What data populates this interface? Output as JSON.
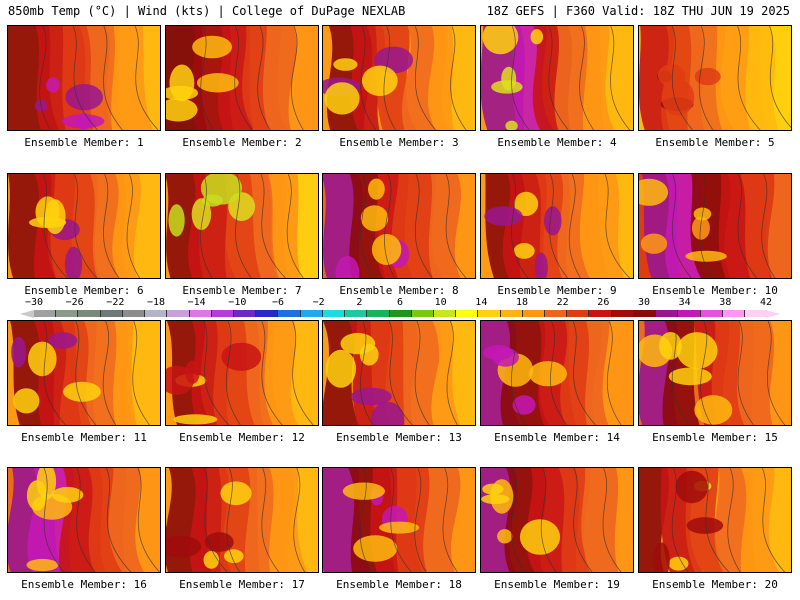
{
  "header": {
    "left": "850mb Temp (°C) | Wind (kts) | College of DuPage NEXLAB",
    "right": "18Z GEFS | F360 Valid: 18Z THU JUN 19 2025"
  },
  "members": [
    {
      "label": "Ensemble Member: 1",
      "palette": [
        "#8b0a0a",
        "#c81414",
        "#e03c14",
        "#f06a1e",
        "#ff9a14",
        "#ffbb0e",
        "#9a168e",
        "#c418b4"
      ]
    },
    {
      "label": "Ensemble Member: 2",
      "palette": [
        "#7a0808",
        "#a00c0c",
        "#c81414",
        "#e03c14",
        "#f06a1e",
        "#ff9a14",
        "#ffbb0e",
        "#ffd20e"
      ]
    },
    {
      "label": "Ensemble Member: 3",
      "palette": [
        "#8b0a0a",
        "#c81414",
        "#e03c14",
        "#f06a1e",
        "#ff9a14",
        "#ffbb0e",
        "#9a168e",
        "#ffd20e"
      ]
    },
    {
      "label": "Ensemble Member: 4",
      "palette": [
        "#9a168e",
        "#c418b4",
        "#c81414",
        "#f06a1e",
        "#ff9a14",
        "#ffbb0e",
        "#ffd20e",
        "#dede1e"
      ]
    },
    {
      "label": "Ensemble Member: 5",
      "palette": [
        "#c81414",
        "#e03c14",
        "#f06a1e",
        "#ff9a14",
        "#ffbb0e",
        "#ffd20e",
        "#8b0a0a",
        "#e03c14"
      ]
    },
    {
      "label": "Ensemble Member: 6",
      "palette": [
        "#8b0a0a",
        "#c81414",
        "#e03c14",
        "#f06a1e",
        "#ff9a14",
        "#ffbb0e",
        "#9a168e",
        "#ffd20e"
      ]
    },
    {
      "label": "Ensemble Member: 7",
      "palette": [
        "#8b0a0a",
        "#c81414",
        "#e03c14",
        "#f06a1e",
        "#ff9a14",
        "#ffd20e",
        "#dede1e",
        "#c8de1e"
      ]
    },
    {
      "label": "Ensemble Member: 8",
      "palette": [
        "#9a168e",
        "#8b0a0a",
        "#c81414",
        "#e03c14",
        "#f06a1e",
        "#ff9a14",
        "#c418b4",
        "#ffbb0e"
      ]
    },
    {
      "label": "Ensemble Member: 9",
      "palette": [
        "#8b0a0a",
        "#c81414",
        "#e03c14",
        "#f06a1e",
        "#ff9a14",
        "#ffbb0e",
        "#ffd20e",
        "#9a168e"
      ]
    },
    {
      "label": "Ensemble Member: 10",
      "palette": [
        "#9a168e",
        "#c418b4",
        "#8b0a0a",
        "#c81414",
        "#e03c14",
        "#f06a1e",
        "#ff9a14",
        "#ffbb0e"
      ]
    },
    {
      "label": "Ensemble Member: 11",
      "palette": [
        "#8b0a0a",
        "#c81414",
        "#e03c14",
        "#f06a1e",
        "#ff9a14",
        "#ffbb0e",
        "#9a168e",
        "#ffd20e"
      ]
    },
    {
      "label": "Ensemble Member: 12",
      "palette": [
        "#8b0a0a",
        "#c81414",
        "#e03c14",
        "#f06a1e",
        "#ff9a14",
        "#ffbb0e",
        "#ffd20e",
        "#c81414"
      ]
    },
    {
      "label": "Ensemble Member: 13",
      "palette": [
        "#8b0a0a",
        "#c81414",
        "#e03c14",
        "#f06a1e",
        "#ff9a14",
        "#ffbb0e",
        "#9a168e",
        "#ffd20e"
      ]
    },
    {
      "label": "Ensemble Member: 14",
      "palette": [
        "#9a168e",
        "#8b0a0a",
        "#c81414",
        "#e03c14",
        "#f06a1e",
        "#ff9a14",
        "#ffbb0e",
        "#c418b4"
      ]
    },
    {
      "label": "Ensemble Member: 15",
      "palette": [
        "#9a168e",
        "#8b0a0a",
        "#c81414",
        "#e03c14",
        "#f06a1e",
        "#ff9a14",
        "#ffbb0e",
        "#ffd20e"
      ]
    },
    {
      "label": "Ensemble Member: 16",
      "palette": [
        "#9a168e",
        "#c418b4",
        "#c81414",
        "#e03c14",
        "#f06a1e",
        "#ff9a14",
        "#ffbb0e",
        "#ffd20e"
      ]
    },
    {
      "label": "Ensemble Member: 17",
      "palette": [
        "#8b0a0a",
        "#c81414",
        "#e03c14",
        "#f06a1e",
        "#ff9a14",
        "#ffbb0e",
        "#a00c0c",
        "#ffd20e"
      ]
    },
    {
      "label": "Ensemble Member: 18",
      "palette": [
        "#9a168e",
        "#8b0a0a",
        "#c81414",
        "#e03c14",
        "#f06a1e",
        "#ff9a14",
        "#c418b4",
        "#ffbb0e"
      ]
    },
    {
      "label": "Ensemble Member: 19",
      "palette": [
        "#9a168e",
        "#8b0a0a",
        "#c81414",
        "#e03c14",
        "#f06a1e",
        "#ff9a14",
        "#ffbb0e",
        "#ffd20e"
      ]
    },
    {
      "label": "Ensemble Member: 20",
      "palette": [
        "#8b0a0a",
        "#c81414",
        "#e03c14",
        "#f06a1e",
        "#ff9a14",
        "#ffbb0e",
        "#ffd20e",
        "#a00c0c"
      ]
    }
  ],
  "colorbar": {
    "labels": [
      "−30",
      "−26",
      "−22",
      "−18",
      "−14",
      "−10",
      "−6",
      "−2",
      "2",
      "6",
      "10",
      "14",
      "18",
      "22",
      "26",
      "30",
      "34",
      "38",
      "42"
    ],
    "colors": [
      "#a0a0a0",
      "#8c9a8c",
      "#7a8a7a",
      "#6e7a7a",
      "#8c8c8c",
      "#b4b4c8",
      "#c8a0dc",
      "#dc78e6",
      "#b43cdc",
      "#6e28c8",
      "#2828c8",
      "#1e6ee6",
      "#1eaaf0",
      "#1edcdc",
      "#1ec8a0",
      "#14b45a",
      "#1e961e",
      "#78c814",
      "#c8e61e",
      "#ffff14",
      "#ffd20e",
      "#ffb414",
      "#ff9614",
      "#f0641e",
      "#e03c14",
      "#c81414",
      "#a00c0c",
      "#8b0a0a",
      "#9a168e",
      "#c418b4",
      "#e650dc",
      "#ff96f0",
      "#ffd0f5"
    ]
  }
}
